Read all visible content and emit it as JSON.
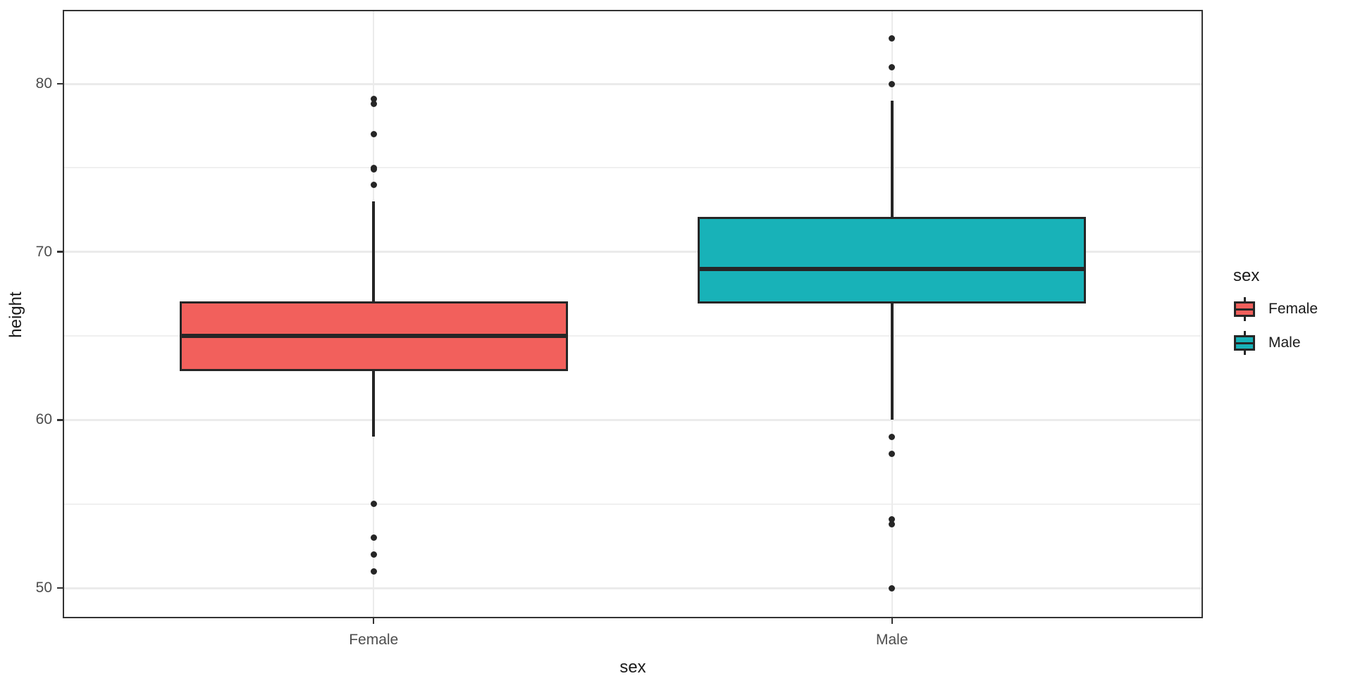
{
  "chart_data": {
    "type": "boxplot",
    "title": "",
    "xlabel": "sex",
    "ylabel": "height",
    "categories": [
      "Female",
      "Male"
    ],
    "y_axis": {
      "range": [
        48.2,
        84.4
      ],
      "major_ticks": [
        50,
        60,
        70,
        80
      ],
      "minor_ticks": [
        55,
        65,
        75
      ],
      "grid": true
    },
    "series": [
      {
        "name": "Female",
        "fill_color": "#F2605C",
        "q1": 63,
        "median": 65,
        "q3": 67,
        "whisker_low": 59,
        "whisker_high": 73,
        "outliers": [
          51,
          52,
          53,
          55,
          74,
          74.9,
          75,
          77,
          78.8,
          79.1
        ]
      },
      {
        "name": "Male",
        "fill_color": "#18B2B8",
        "q1": 67,
        "median": 69,
        "q3": 72,
        "whisker_low": 60,
        "whisker_high": 79,
        "outliers": [
          50,
          53.8,
          54.1,
          58,
          59,
          80,
          81,
          82.7
        ]
      }
    ],
    "legend": {
      "title": "sex",
      "position": "right",
      "entries": [
        {
          "label": "Female",
          "color": "#F2605C"
        },
        {
          "label": "Male",
          "color": "#18B2B8"
        }
      ]
    },
    "style": {
      "stroke_color": "#262626",
      "grid_color": "#EBEBEB",
      "panel_border_color": "#333333",
      "tick_label_color": "#4D4D4D",
      "title_color": "#1A1A1A",
      "background": "#FFFFFF"
    }
  }
}
